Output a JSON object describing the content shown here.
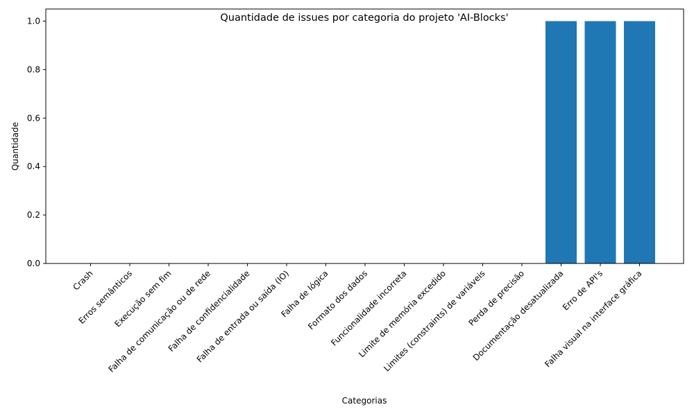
{
  "chart_data": {
    "type": "bar",
    "title": "Quantidade de issues por categoria do projeto 'AI-Blocks'",
    "xlabel": "Categorias",
    "ylabel": "Quantidade",
    "categories": [
      "Crash",
      "Erros semânticos",
      "Execução sem fim",
      "Falha de comunicação ou de rede",
      "Falha de confidencialidade",
      "Falha de entrada ou saída (IO)",
      "Falha de lógica",
      "Formato dos dados",
      "Funcionalidade incorreta",
      "Limite de memória excedido",
      "Limites (constraints) de variáveis",
      "Perda de precisão",
      "Documentação desatualizada",
      "Erro de API's",
      "Falha visual na interface gráfica"
    ],
    "values": [
      0,
      0,
      0,
      0,
      0,
      0,
      0,
      0,
      0,
      0,
      0,
      0,
      1,
      1,
      1
    ],
    "ylim": [
      0,
      1.05
    ],
    "yticks": [
      "0.0",
      "0.2",
      "0.4",
      "0.6",
      "0.8",
      "1.0"
    ],
    "grid": false,
    "bar_color": "#1f77b4"
  }
}
